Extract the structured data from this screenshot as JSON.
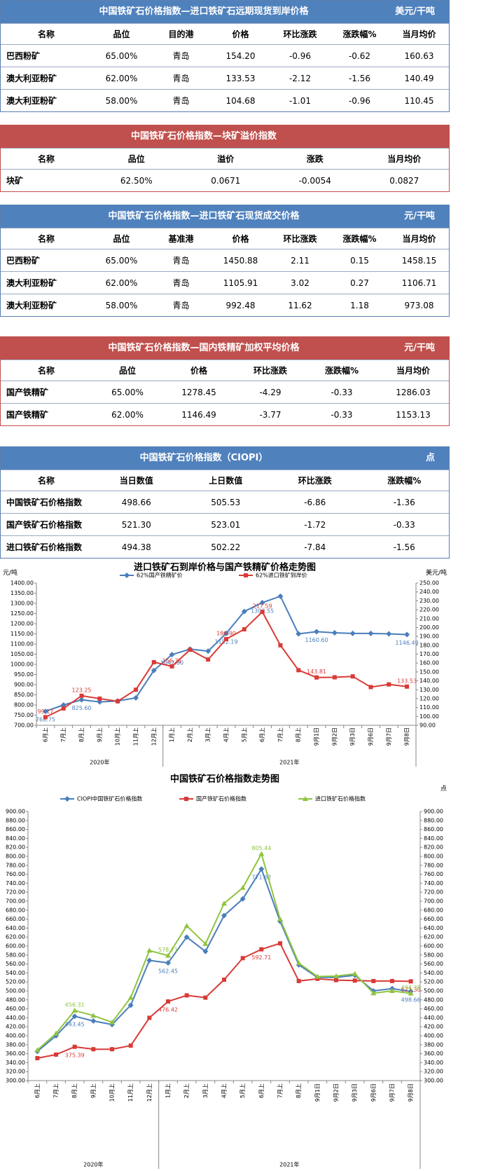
{
  "tables": [
    {
      "title": "中国铁矿石价格指数—进口铁矿石远期现货到岸价格",
      "unit": "美元/干吨",
      "headers": [
        "名称",
        "品位",
        "目的港",
        "价格",
        "环比涨跌",
        "涨跌幅%",
        "当月均价"
      ],
      "rows": [
        [
          "巴西粉矿",
          "65.00%",
          "青岛",
          "154.20",
          "-0.96",
          "-0.62",
          "160.63"
        ],
        [
          "澳大利亚粉矿",
          "62.00%",
          "青岛",
          "133.53",
          "-2.12",
          "-1.56",
          "140.49"
        ],
        [
          "澳大利亚粉矿",
          "58.00%",
          "青岛",
          "104.68",
          "-1.01",
          "-0.96",
          "110.45"
        ]
      ]
    },
    {
      "title": "中国铁矿石价格指数—块矿溢价指数",
      "headers": [
        "名称",
        "品位",
        "溢价",
        "涨跌",
        "当月均价"
      ],
      "rows": [
        [
          "块矿",
          "62.50%",
          "0.0671",
          "-0.0054",
          "0.0827"
        ]
      ]
    },
    {
      "title": "中国铁矿石价格指数—进口铁矿石现货成交价格",
      "unit": "元/干吨",
      "headers": [
        "名称",
        "品位",
        "基准港",
        "价格",
        "环比涨跌",
        "涨跌幅%",
        "当月均价"
      ],
      "rows": [
        [
          "巴西粉矿",
          "65.00%",
          "青岛",
          "1450.88",
          "2.11",
          "0.15",
          "1458.15"
        ],
        [
          "澳大利亚粉矿",
          "62.00%",
          "青岛",
          "1105.91",
          "3.02",
          "0.27",
          "1106.71"
        ],
        [
          "澳大利亚粉矿",
          "58.00%",
          "青岛",
          "992.48",
          "11.62",
          "1.18",
          "973.08"
        ]
      ]
    },
    {
      "title": "中国铁矿石价格指数—国内铁精矿加权平均价格",
      "unit": "元/干吨",
      "headers": [
        "名称",
        "品位",
        "价格",
        "环比涨跌",
        "涨跌幅%",
        "当月均价"
      ],
      "rows": [
        [
          "国产铁精矿",
          "65.00%",
          "1278.45",
          "-4.29",
          "-0.33",
          "1286.03"
        ],
        [
          "国产铁精矿",
          "62.00%",
          "1146.49",
          "-3.77",
          "-0.33",
          "1153.13"
        ]
      ]
    },
    {
      "title": "中国铁矿石价格指数（CIOPI）",
      "unit": "点",
      "headers": [
        "名称",
        "当日数值",
        "上日数值",
        "环比涨跌",
        "涨跌幅%"
      ],
      "rows": [
        [
          "中国铁矿石价格指数",
          "498.66",
          "505.53",
          "-6.86",
          "-1.36"
        ],
        [
          "国产铁矿石价格指数",
          "521.30",
          "523.01",
          "-1.72",
          "-0.33"
        ],
        [
          "进口铁矿石价格指数",
          "494.38",
          "502.22",
          "-7.84",
          "-1.56"
        ]
      ]
    }
  ],
  "chart_data": [
    {
      "type": "line",
      "title": "进口铁矿石到岸价格与国产铁精矿价格走势图",
      "y_label": "元/吨",
      "y2_label": "美元/吨",
      "grid": false,
      "categories": [
        "6月上",
        "7月上",
        "8月上",
        "9月上",
        "10月上",
        "11月上",
        "12月上",
        "1月上",
        "2月上",
        "3月上",
        "4月上",
        "5月上",
        "6月上",
        "7月上",
        "8月上",
        "9月1日",
        "9月2日",
        "9月3日",
        "9月6日",
        "9月7日",
        "9月8日"
      ],
      "groups": [
        {
          "label": "2020年",
          "count": 7
        },
        {
          "label": "2021年",
          "count": 14
        }
      ],
      "series": [
        {
          "name": "62%国产铁精矿价",
          "color": "#4a7ebb",
          "marker": "diamond",
          "values": [
            768.75,
            800,
            825.6,
            815,
            820,
            835,
            970,
            1047.8,
            1075,
            1065,
            1152.19,
            1260,
            1303.55,
            1335,
            1150,
            1160.6,
            1155,
            1152,
            1152,
            1150,
            1146.49
          ],
          "value_labels": [
            "768.75",
            null,
            "825.60",
            null,
            null,
            null,
            null,
            "1047.80",
            null,
            null,
            "1152.19",
            null,
            "1303.55",
            null,
            null,
            "1160.60",
            null,
            null,
            null,
            null,
            "1146.49"
          ]
        },
        {
          "name": "62%进口铁矿到岸价",
          "color": "#d93a36",
          "marker": "square",
          "axis": "y2",
          "values": [
            99.17,
            109,
            123.25,
            120,
            117,
            130,
            161,
            156.31,
            175,
            164,
            186.9,
            198,
            217.59,
            180,
            152,
            143.81,
            144,
            145,
            133,
            136,
            133.53
          ],
          "value_labels": [
            "99.17",
            null,
            "123.25",
            null,
            null,
            null,
            null,
            "156.31",
            null,
            null,
            "186.90",
            null,
            "217.59",
            null,
            null,
            "143.81",
            null,
            null,
            null,
            null,
            "133.53"
          ]
        }
      ],
      "ylim": [
        700,
        1400
      ],
      "yticks": [
        {
          "value": 700,
          "label": "700.00"
        },
        {
          "value": 750,
          "label": "750.00"
        },
        {
          "value": 800,
          "label": "800.00"
        },
        {
          "value": 850,
          "label": "850.00"
        },
        {
          "value": 900,
          "label": "900.00"
        },
        {
          "value": 950,
          "label": "950.00"
        },
        {
          "value": 1000,
          "label": "1000.00"
        },
        {
          "value": 1050,
          "label": "1050.00"
        },
        {
          "value": 1100,
          "label": "1100.00"
        },
        {
          "value": 1150,
          "label": "1150.00"
        },
        {
          "value": 1200,
          "label": "1200.00"
        },
        {
          "value": 1250,
          "label": "1250.00"
        },
        {
          "value": 1300,
          "label": "1300.00"
        },
        {
          "value": 1350,
          "label": "1350.00"
        },
        {
          "value": 1400,
          "label": "1400.00"
        }
      ],
      "y2lim": [
        90,
        250
      ],
      "y2ticks": [
        {
          "value": 90,
          "label": "90.00"
        },
        {
          "value": 100,
          "label": "100.00"
        },
        {
          "value": 110,
          "label": "110.00"
        },
        {
          "value": 120,
          "label": "120.00"
        },
        {
          "value": 130,
          "label": "130.00"
        },
        {
          "value": 140,
          "label": "140.00"
        },
        {
          "value": 150,
          "label": "150.00"
        },
        {
          "value": 160,
          "label": "160.00"
        },
        {
          "value": 170,
          "label": "170.00"
        },
        {
          "value": 180,
          "label": "180.00"
        },
        {
          "value": 190,
          "label": "190.00"
        },
        {
          "value": 200,
          "label": "200.00"
        },
        {
          "value": 210,
          "label": "210.00"
        },
        {
          "value": 220,
          "label": "220.00"
        },
        {
          "value": 230,
          "label": "230.00"
        },
        {
          "value": 240,
          "label": "240.00"
        },
        {
          "value": 250,
          "label": "250.00"
        }
      ]
    },
    {
      "type": "line",
      "title": "中国铁矿石价格指数走势图",
      "y2_label": "点",
      "grid": false,
      "categories": [
        "6月上",
        "7月上",
        "8月上",
        "9月上",
        "10月上",
        "11月上",
        "12月上",
        "1月上",
        "2月上",
        "3月上",
        "4月上",
        "5月上",
        "6月上",
        "7月上",
        "8月上",
        "9月1日",
        "9月2日",
        "9月3日",
        "9月6日",
        "9月7日",
        "9月8日"
      ],
      "groups": [
        {
          "label": "2020年",
          "count": 7
        },
        {
          "label": "2021年",
          "count": 14
        }
      ],
      "series": [
        {
          "name": "CIOPI中国铁矿石价格指数",
          "color": "#4a7ebb",
          "marker": "diamond",
          "values": [
            365,
            400,
            443.45,
            433,
            425,
            468,
            568,
            562.45,
            620,
            588,
            668,
            705,
            771.62,
            655,
            558,
            530,
            530,
            535,
            500,
            505,
            498.66
          ],
          "value_labels": [
            null,
            null,
            "443.45",
            null,
            null,
            null,
            null,
            "562.45",
            null,
            null,
            null,
            null,
            "771.62",
            null,
            null,
            null,
            null,
            null,
            null,
            null,
            "498.66"
          ]
        },
        {
          "name": "国产铁矿石价格指数",
          "color": "#d93a36",
          "marker": "square",
          "values": [
            350,
            358,
            375.39,
            370,
            370,
            378,
            440,
            476.42,
            490,
            485,
            525,
            573,
            592.71,
            606,
            522,
            527,
            524,
            523,
            522,
            522,
            521.3
          ],
          "value_labels": [
            null,
            null,
            "375.39",
            null,
            null,
            null,
            null,
            "476.42",
            null,
            null,
            null,
            null,
            "592.71",
            null,
            null,
            null,
            null,
            null,
            null,
            null,
            "521.30"
          ]
        },
        {
          "name": "进口铁矿石价格指数",
          "color": "#8fc43f",
          "marker": "triangle",
          "values": [
            368,
            405,
            456.31,
            445,
            430,
            485,
            590,
            578.71,
            645,
            605,
            695,
            730,
            805.44,
            660,
            562,
            532,
            533,
            538,
            495,
            500,
            494.38
          ],
          "value_labels": [
            null,
            null,
            "456.31",
            null,
            null,
            null,
            null,
            "578.71",
            null,
            null,
            null,
            null,
            "805.44",
            null,
            null,
            null,
            null,
            null,
            null,
            null,
            "494.38"
          ]
        }
      ],
      "ylim": [
        300,
        900
      ],
      "yticks": [
        {
          "value": 300,
          "label": "300.00"
        },
        {
          "value": 320,
          "label": "320.00"
        },
        {
          "value": 340,
          "label": "340.00"
        },
        {
          "value": 360,
          "label": "360.00"
        },
        {
          "value": 380,
          "label": "380.00"
        },
        {
          "value": 400,
          "label": "400.00"
        },
        {
          "value": 420,
          "label": "420.00"
        },
        {
          "value": 440,
          "label": "440.00"
        },
        {
          "value": 460,
          "label": "460.00"
        },
        {
          "value": 480,
          "label": "480.00"
        },
        {
          "value": 500,
          "label": "500.00"
        },
        {
          "value": 520,
          "label": "520.00"
        },
        {
          "value": 540,
          "label": "540.00"
        },
        {
          "value": 560,
          "label": "560.00"
        },
        {
          "value": 580,
          "label": "580.00"
        },
        {
          "value": 600,
          "label": "600.00"
        },
        {
          "value": 620,
          "label": "620.00"
        },
        {
          "value": 640,
          "label": "640.00"
        },
        {
          "value": 660,
          "label": "660.00"
        },
        {
          "value": 680,
          "label": "680.00"
        },
        {
          "value": 700,
          "label": "700.00"
        },
        {
          "value": 720,
          "label": "720.00"
        },
        {
          "value": 740,
          "label": "740.00"
        },
        {
          "value": 760,
          "label": "760.00"
        },
        {
          "value": 780,
          "label": "780.00"
        },
        {
          "value": 800,
          "label": "800.00"
        },
        {
          "value": 820,
          "label": "820.00"
        },
        {
          "value": 840,
          "label": "840.00"
        },
        {
          "value": 860,
          "label": "860.00"
        },
        {
          "value": 880,
          "label": "880.00"
        },
        {
          "value": 900,
          "label": "900.00"
        }
      ],
      "y2lim": [
        300,
        900
      ],
      "y2ticks": [
        {
          "value": 300,
          "label": "300.00"
        },
        {
          "value": 320,
          "label": "320.00"
        },
        {
          "value": 340,
          "label": "340.00"
        },
        {
          "value": 360,
          "label": "360.00"
        },
        {
          "value": 380,
          "label": "380.00"
        },
        {
          "value": 400,
          "label": "400.00"
        },
        {
          "value": 420,
          "label": "420.00"
        },
        {
          "value": 440,
          "label": "440.00"
        },
        {
          "value": 460,
          "label": "460.00"
        },
        {
          "value": 480,
          "label": "480.00"
        },
        {
          "value": 500,
          "label": "500.00"
        },
        {
          "value": 520,
          "label": "520.00"
        },
        {
          "value": 540,
          "label": "540.00"
        },
        {
          "value": 560,
          "label": "560.00"
        },
        {
          "value": 580,
          "label": "580.00"
        },
        {
          "value": 600,
          "label": "600.00"
        },
        {
          "value": 620,
          "label": "620.00"
        },
        {
          "value": 640,
          "label": "640.00"
        },
        {
          "value": 660,
          "label": "660.00"
        },
        {
          "value": 680,
          "label": "680.00"
        },
        {
          "value": 700,
          "label": "700.00"
        },
        {
          "value": 720,
          "label": "720.00"
        },
        {
          "value": 740,
          "label": "740.00"
        },
        {
          "value": 760,
          "label": "760.00"
        },
        {
          "value": 780,
          "label": "780.00"
        },
        {
          "value": 800,
          "label": "800.00"
        },
        {
          "value": 820,
          "label": "820.00"
        },
        {
          "value": 840,
          "label": "840.00"
        },
        {
          "value": 860,
          "label": "860.00"
        },
        {
          "value": 880,
          "label": "880.00"
        },
        {
          "value": 900,
          "label": "900.00"
        }
      ]
    }
  ]
}
